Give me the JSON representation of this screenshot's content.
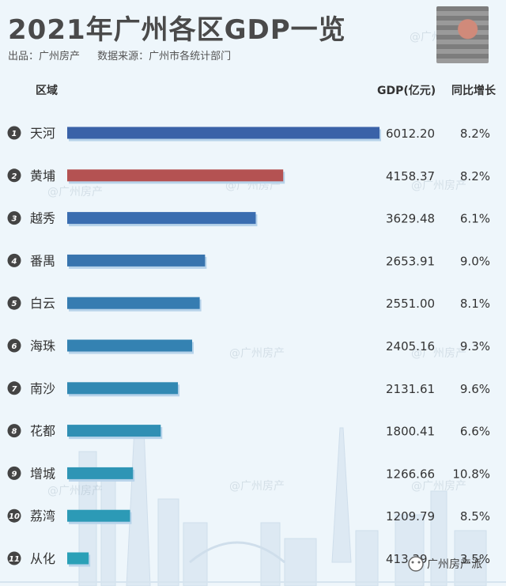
{
  "title": "2021年广州各区GDP一览",
  "source": {
    "publisher": "出品：广州房产",
    "data_source": "数据来源：广州市各统计部门"
  },
  "headers": {
    "region": "区域",
    "gdp": "GDP(亿元)",
    "growth": "同比增长"
  },
  "watermark": "@广州房产",
  "footer_brand": "广州房产派",
  "colors": {
    "background": "#eef6fb",
    "bar_blue": "#3a6db0",
    "bar_red": "#b45252",
    "bar_teal": "#2e93b4",
    "bar_shadow": "#b7d3ea"
  },
  "chart_data": {
    "type": "bar",
    "orientation": "horizontal",
    "categories": [
      "天河",
      "黄埔",
      "越秀",
      "番禺",
      "白云",
      "海珠",
      "南沙",
      "花都",
      "增城",
      "荔湾",
      "从化"
    ],
    "ranks": [
      "1",
      "2",
      "3",
      "4",
      "5",
      "6",
      "7",
      "8",
      "9",
      "10",
      "11"
    ],
    "values": [
      6012.2,
      4158.37,
      3629.48,
      2653.91,
      2551.0,
      2405.16,
      2131.61,
      1800.41,
      1266.66,
      1209.79,
      413.39
    ],
    "value_labels": [
      "6012.20",
      "4158.37",
      "3629.48",
      "2653.91",
      "2551.00",
      "2405.16",
      "2131.61",
      "1800.41",
      "1266.66",
      "1209.79",
      "413.39"
    ],
    "growth": [
      "8.2%",
      "8.2%",
      "6.1%",
      "9.0%",
      "8.1%",
      "9.3%",
      "9.6%",
      "6.6%",
      "10.8%",
      "8.5%",
      "3.5%"
    ],
    "bar_colors": [
      "#3a62a8",
      "#b45252",
      "#3a6db0",
      "#3874ae",
      "#367cb1",
      "#3482b2",
      "#3289b3",
      "#308fb4",
      "#2e95b5",
      "#2c9ab6",
      "#2aa0b7"
    ],
    "xlim": [
      0,
      6012.2
    ],
    "grid": false,
    "legend": "none"
  }
}
